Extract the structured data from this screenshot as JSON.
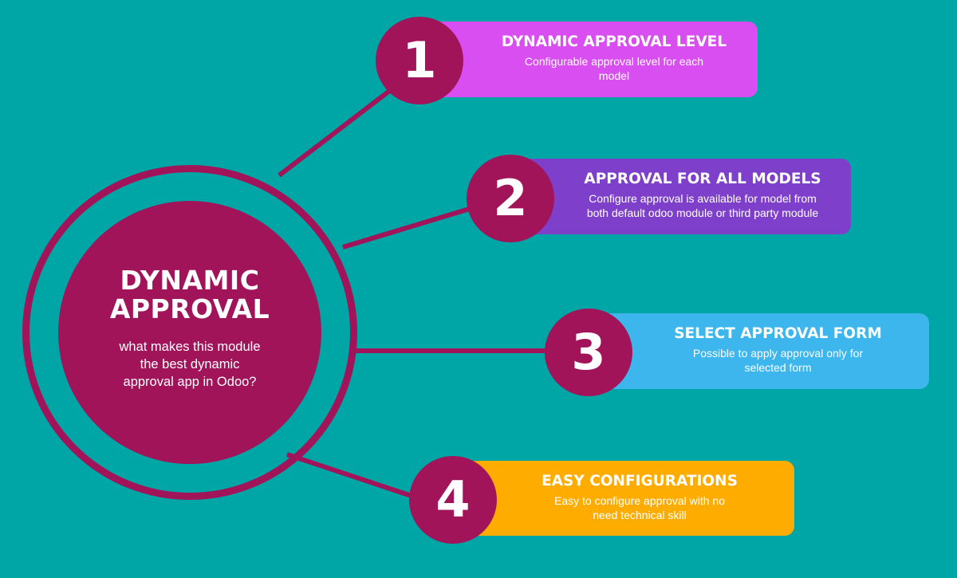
{
  "center": {
    "title_line1": "DYNAMIC",
    "title_line2": "APPROVAL",
    "subtitle_line1": "what makes this module",
    "subtitle_line2": "the best dynamic",
    "subtitle_line3": "approval app in Odoo?"
  },
  "colors": {
    "background": "#00a6a6",
    "accent": "#a1145a",
    "item1": "#d94ef0",
    "item2": "#7e3fcb",
    "item3": "#3db6ee",
    "item4": "#ffac00"
  },
  "items": [
    {
      "number": "1",
      "title": "DYNAMIC APPROVAL LEVEL",
      "desc_line1": "Configurable approval level for each",
      "desc_line2": "model"
    },
    {
      "number": "2",
      "title": "APPROVAL FOR ALL MODELS",
      "desc_line1": "Configure approval is available for model from",
      "desc_line2": "both default odoo module or third party module"
    },
    {
      "number": "3",
      "title": "SELECT APPROVAL FORM",
      "desc_line1": "Possible to apply approval only for",
      "desc_line2": "selected form"
    },
    {
      "number": "4",
      "title": "EASY CONFIGURATIONS",
      "desc_line1": "Easy to configure approval with no",
      "desc_line2": "need technical skill"
    }
  ]
}
